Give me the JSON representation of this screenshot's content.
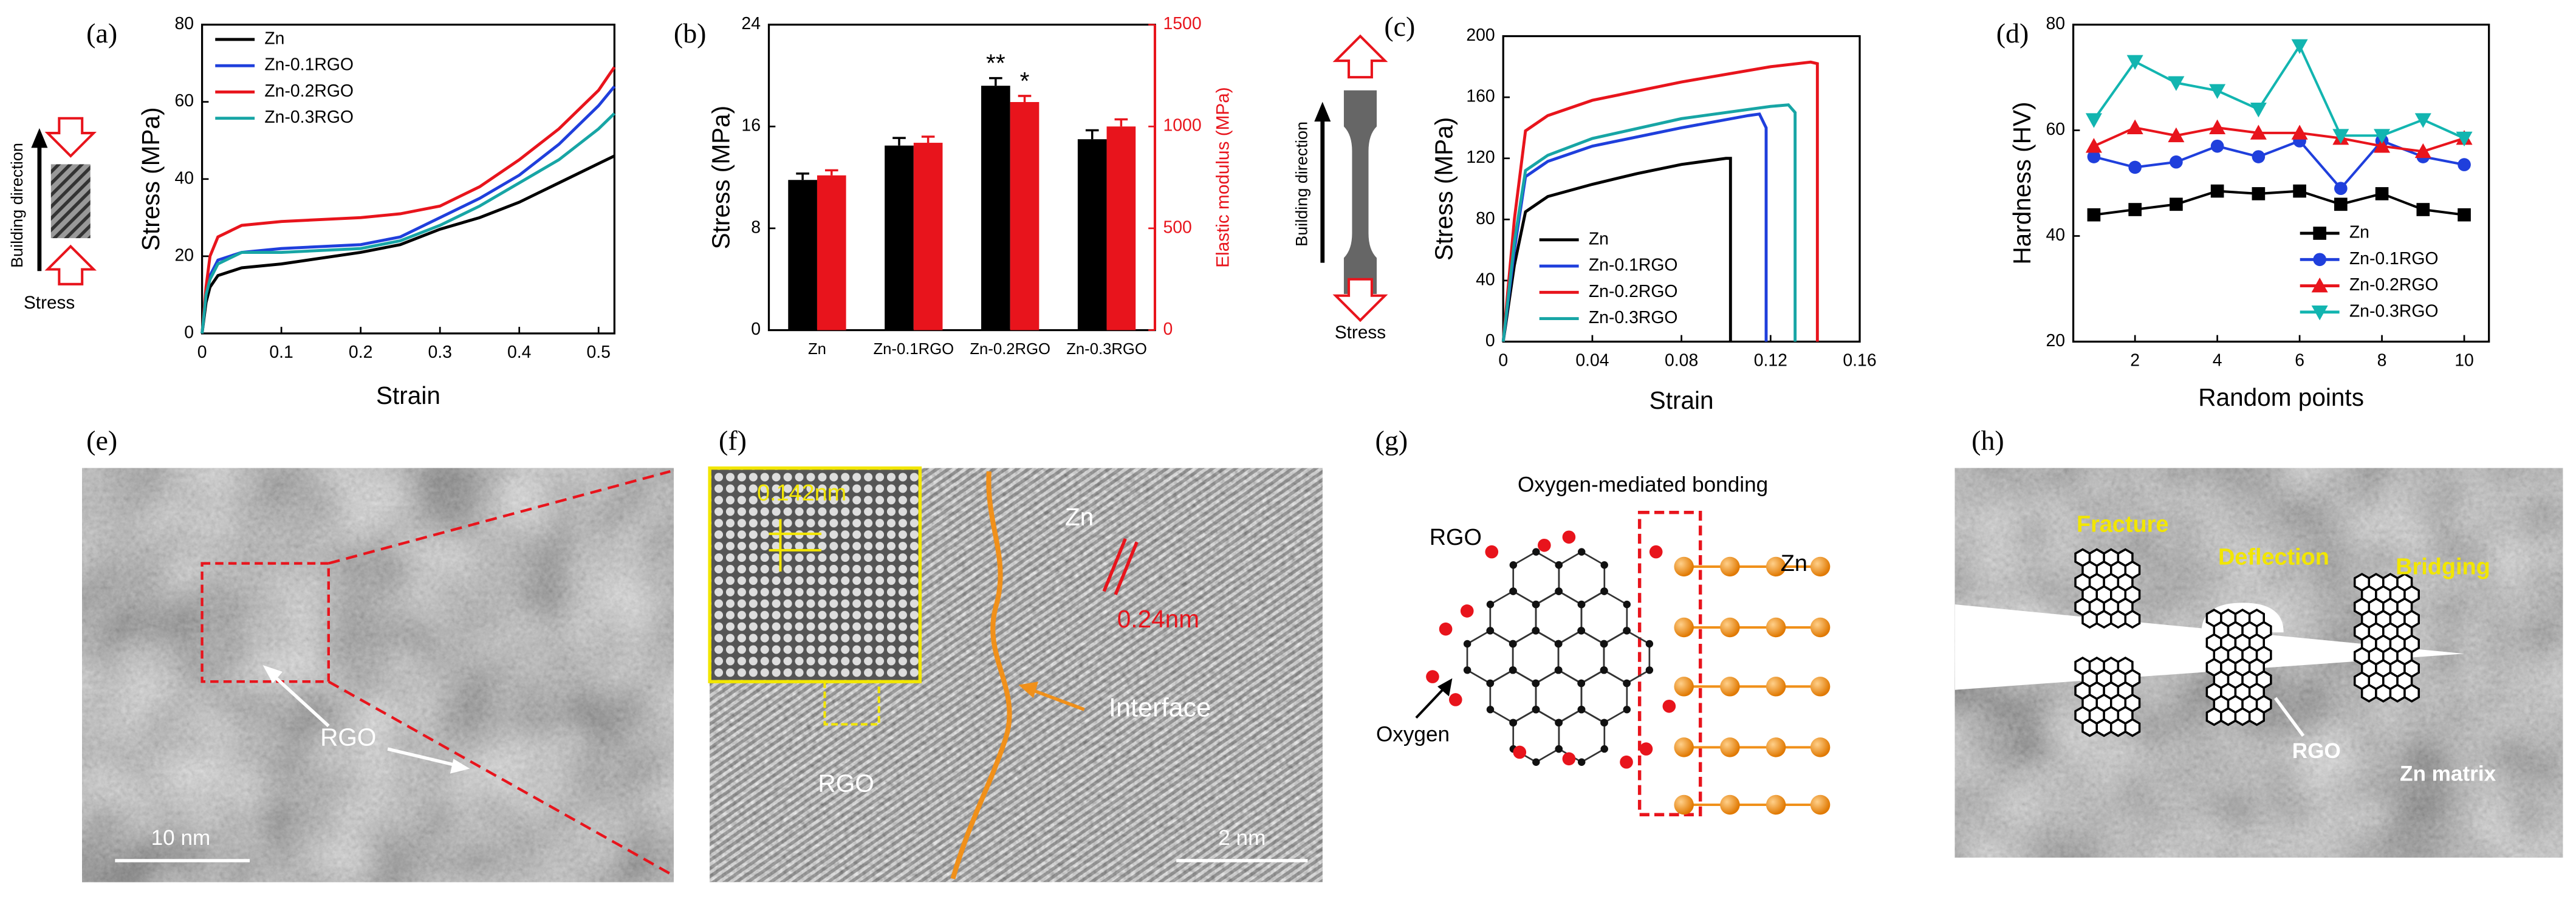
{
  "chart_data": [
    {
      "type": "line",
      "label": "(a)",
      "xlabel": "Strain",
      "ylabel": "Stress (MPa)",
      "x": [
        0,
        0.005,
        0.01,
        0.02,
        0.05,
        0.1,
        0.2,
        0.25,
        0.3,
        0.35,
        0.4,
        0.45,
        0.5,
        0.52
      ],
      "series": [
        {
          "name": "Zn",
          "color": "#000000",
          "values": [
            0,
            8,
            12,
            15,
            17,
            18,
            21,
            23,
            27,
            30,
            34,
            39,
            44,
            46
          ]
        },
        {
          "name": "Zn-0.1RGO",
          "color": "#1f3fdc",
          "values": [
            0,
            10,
            15,
            19,
            21,
            22,
            23,
            25,
            30,
            35,
            41,
            49,
            59,
            64
          ]
        },
        {
          "name": "Zn-0.2RGO",
          "color": "#e8141c",
          "values": [
            0,
            12,
            20,
            25,
            28,
            29,
            30,
            31,
            33,
            38,
            45,
            53,
            63,
            69
          ]
        },
        {
          "name": "Zn-0.3RGO",
          "color": "#17a5a5",
          "values": [
            0,
            10,
            14,
            18,
            21,
            21,
            22,
            24,
            28,
            33,
            39,
            45,
            53,
            57
          ]
        }
      ],
      "xlim": [
        0,
        0.52
      ],
      "xticks": [
        0,
        0.1,
        0.2,
        0.3,
        0.4,
        0.5
      ],
      "ylim": [
        0,
        80
      ],
      "yticks": [
        0,
        20,
        40,
        60,
        80
      ],
      "legend": "upper left",
      "annotations": [
        "Building direction",
        "Stress"
      ]
    },
    {
      "type": "bar",
      "label": "(b)",
      "ylabel": "Stress (MPa)",
      "y2label": "Elastic modulus (MPa)",
      "y2color": "#e8141c",
      "categories": [
        "Zn",
        "Zn-0.1RGO",
        "Zn-0.2RGO",
        "Zn-0.3RGO"
      ],
      "series": [
        {
          "color": "#000000",
          "values": [
            11.8,
            14.5,
            19.2,
            15
          ],
          "errors": [
            0.5,
            0.6,
            0.6,
            0.7
          ]
        },
        {
          "color": "#e8141c",
          "values": [
            760,
            920,
            1120,
            1000
          ],
          "errors": [
            25,
            30,
            30,
            35
          ],
          "axis": "y2"
        }
      ],
      "ylim": [
        0,
        24
      ],
      "yticks": [
        0,
        8,
        16,
        24
      ],
      "y2lim": [
        0,
        1500
      ],
      "y2ticks": [
        0,
        500,
        1000,
        1500
      ],
      "annotations": [
        "**",
        "*"
      ]
    },
    {
      "type": "line",
      "label": "(c)",
      "xlabel": "Strain",
      "ylabel": "Stress (MPa)",
      "series": [
        {
          "name": "Zn",
          "color": "#000000",
          "x": [
            0,
            0.005,
            0.01,
            0.02,
            0.04,
            0.06,
            0.08,
            0.1,
            0.102,
            0.102
          ],
          "values": [
            0,
            50,
            85,
            95,
            103,
            110,
            116,
            120,
            120,
            0
          ]
        },
        {
          "name": "Zn-0.1RGO",
          "color": "#1f3fdc",
          "x": [
            0,
            0.005,
            0.01,
            0.02,
            0.04,
            0.08,
            0.11,
            0.115,
            0.118,
            0.118
          ],
          "values": [
            0,
            60,
            108,
            118,
            128,
            140,
            148,
            149,
            140,
            0
          ]
        },
        {
          "name": "Zn-0.2RGO",
          "color": "#e8141c",
          "x": [
            0,
            0.005,
            0.01,
            0.02,
            0.04,
            0.08,
            0.12,
            0.138,
            0.141,
            0.141
          ],
          "values": [
            0,
            80,
            138,
            148,
            158,
            170,
            180,
            183,
            182,
            0
          ]
        },
        {
          "name": "Zn-0.3RGO",
          "color": "#17a5a5",
          "x": [
            0,
            0.005,
            0.01,
            0.02,
            0.04,
            0.08,
            0.12,
            0.128,
            0.131,
            0.131
          ],
          "values": [
            0,
            65,
            112,
            122,
            133,
            146,
            154,
            155,
            150,
            0
          ]
        }
      ],
      "xlim": [
        0,
        0.16
      ],
      "xticks": [
        0,
        0.04,
        0.08,
        0.12,
        0.16
      ],
      "ylim": [
        0,
        200
      ],
      "yticks": [
        0,
        40,
        80,
        120,
        160,
        200
      ],
      "legend": "lower left",
      "annotations": [
        "Building direction",
        "Stress"
      ]
    },
    {
      "type": "line",
      "label": "(d)",
      "xlabel": "Random points",
      "ylabel": "Hardness (HV)",
      "x": [
        1,
        2,
        3,
        4,
        5,
        6,
        7,
        8,
        9,
        10
      ],
      "series": [
        {
          "name": "Zn",
          "color": "#000000",
          "marker": "square",
          "values": [
            44,
            45,
            46,
            48.5,
            48,
            48.5,
            46,
            48,
            45,
            44
          ]
        },
        {
          "name": "Zn-0.1RGO",
          "color": "#1f3fdc",
          "marker": "circle",
          "values": [
            55,
            53,
            54,
            57,
            55,
            58,
            49,
            58,
            55,
            53.5
          ]
        },
        {
          "name": "Zn-0.2RGO",
          "color": "#e8141c",
          "marker": "triangle-up",
          "values": [
            57,
            60.5,
            59,
            60.5,
            59.5,
            59.5,
            58.5,
            57,
            56,
            58.5
          ]
        },
        {
          "name": "Zn-0.3RGO",
          "color": "#12b5b0",
          "marker": "triangle-down",
          "values": [
            62,
            73,
            69,
            67.5,
            64,
            76,
            59,
            59,
            62,
            58.5
          ]
        }
      ],
      "xlim": [
        0.5,
        10.6
      ],
      "xticks": [
        2,
        4,
        6,
        8,
        10
      ],
      "ylim": [
        20,
        80
      ],
      "yticks": [
        20,
        40,
        60,
        80
      ],
      "legend": "lower right"
    }
  ],
  "panels": [
    {
      "label": "(e)",
      "texts": [
        "RGO",
        "10 nm"
      ]
    },
    {
      "label": "(f)",
      "texts": [
        "0.142nm",
        "Zn",
        "0.24nm",
        "Interface",
        "RGO",
        "2 nm"
      ]
    },
    {
      "label": "(g)",
      "texts": [
        "Oxygen-mediated bonding",
        "RGO",
        "Zn",
        "Oxygen"
      ]
    },
    {
      "label": "(h)",
      "texts": [
        "Fracture",
        "Deflection",
        "Bridging",
        "RGO",
        "Zn matrix"
      ]
    }
  ]
}
